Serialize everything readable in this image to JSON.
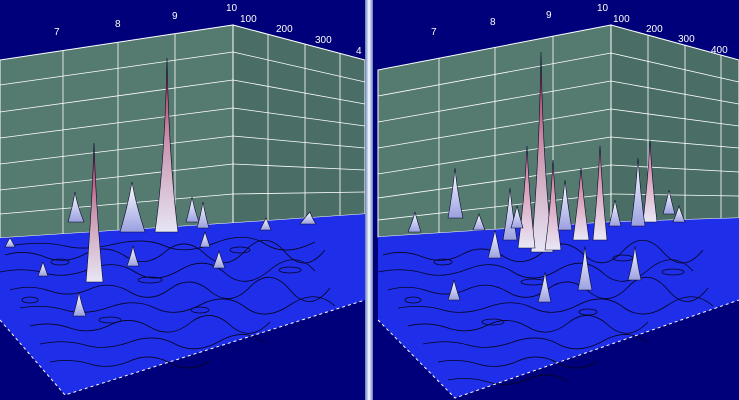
{
  "colors": {
    "background": "#00007a",
    "floor": "#1f2ee8",
    "wall": "#557a70",
    "grid": "#ffffff",
    "peak_low": "#e8e8f4",
    "peak_high": "#b01838"
  },
  "panels": [
    {
      "name": "left",
      "axis_x_ticks": [
        "7",
        "8",
        "9",
        "10"
      ],
      "axis_y_ticks": [
        "100",
        "200",
        "300",
        "4"
      ]
    },
    {
      "name": "right",
      "axis_x_ticks": [
        "7",
        "8",
        "9",
        "10"
      ],
      "axis_y_ticks": [
        "100",
        "200",
        "300",
        "400"
      ]
    }
  ]
}
